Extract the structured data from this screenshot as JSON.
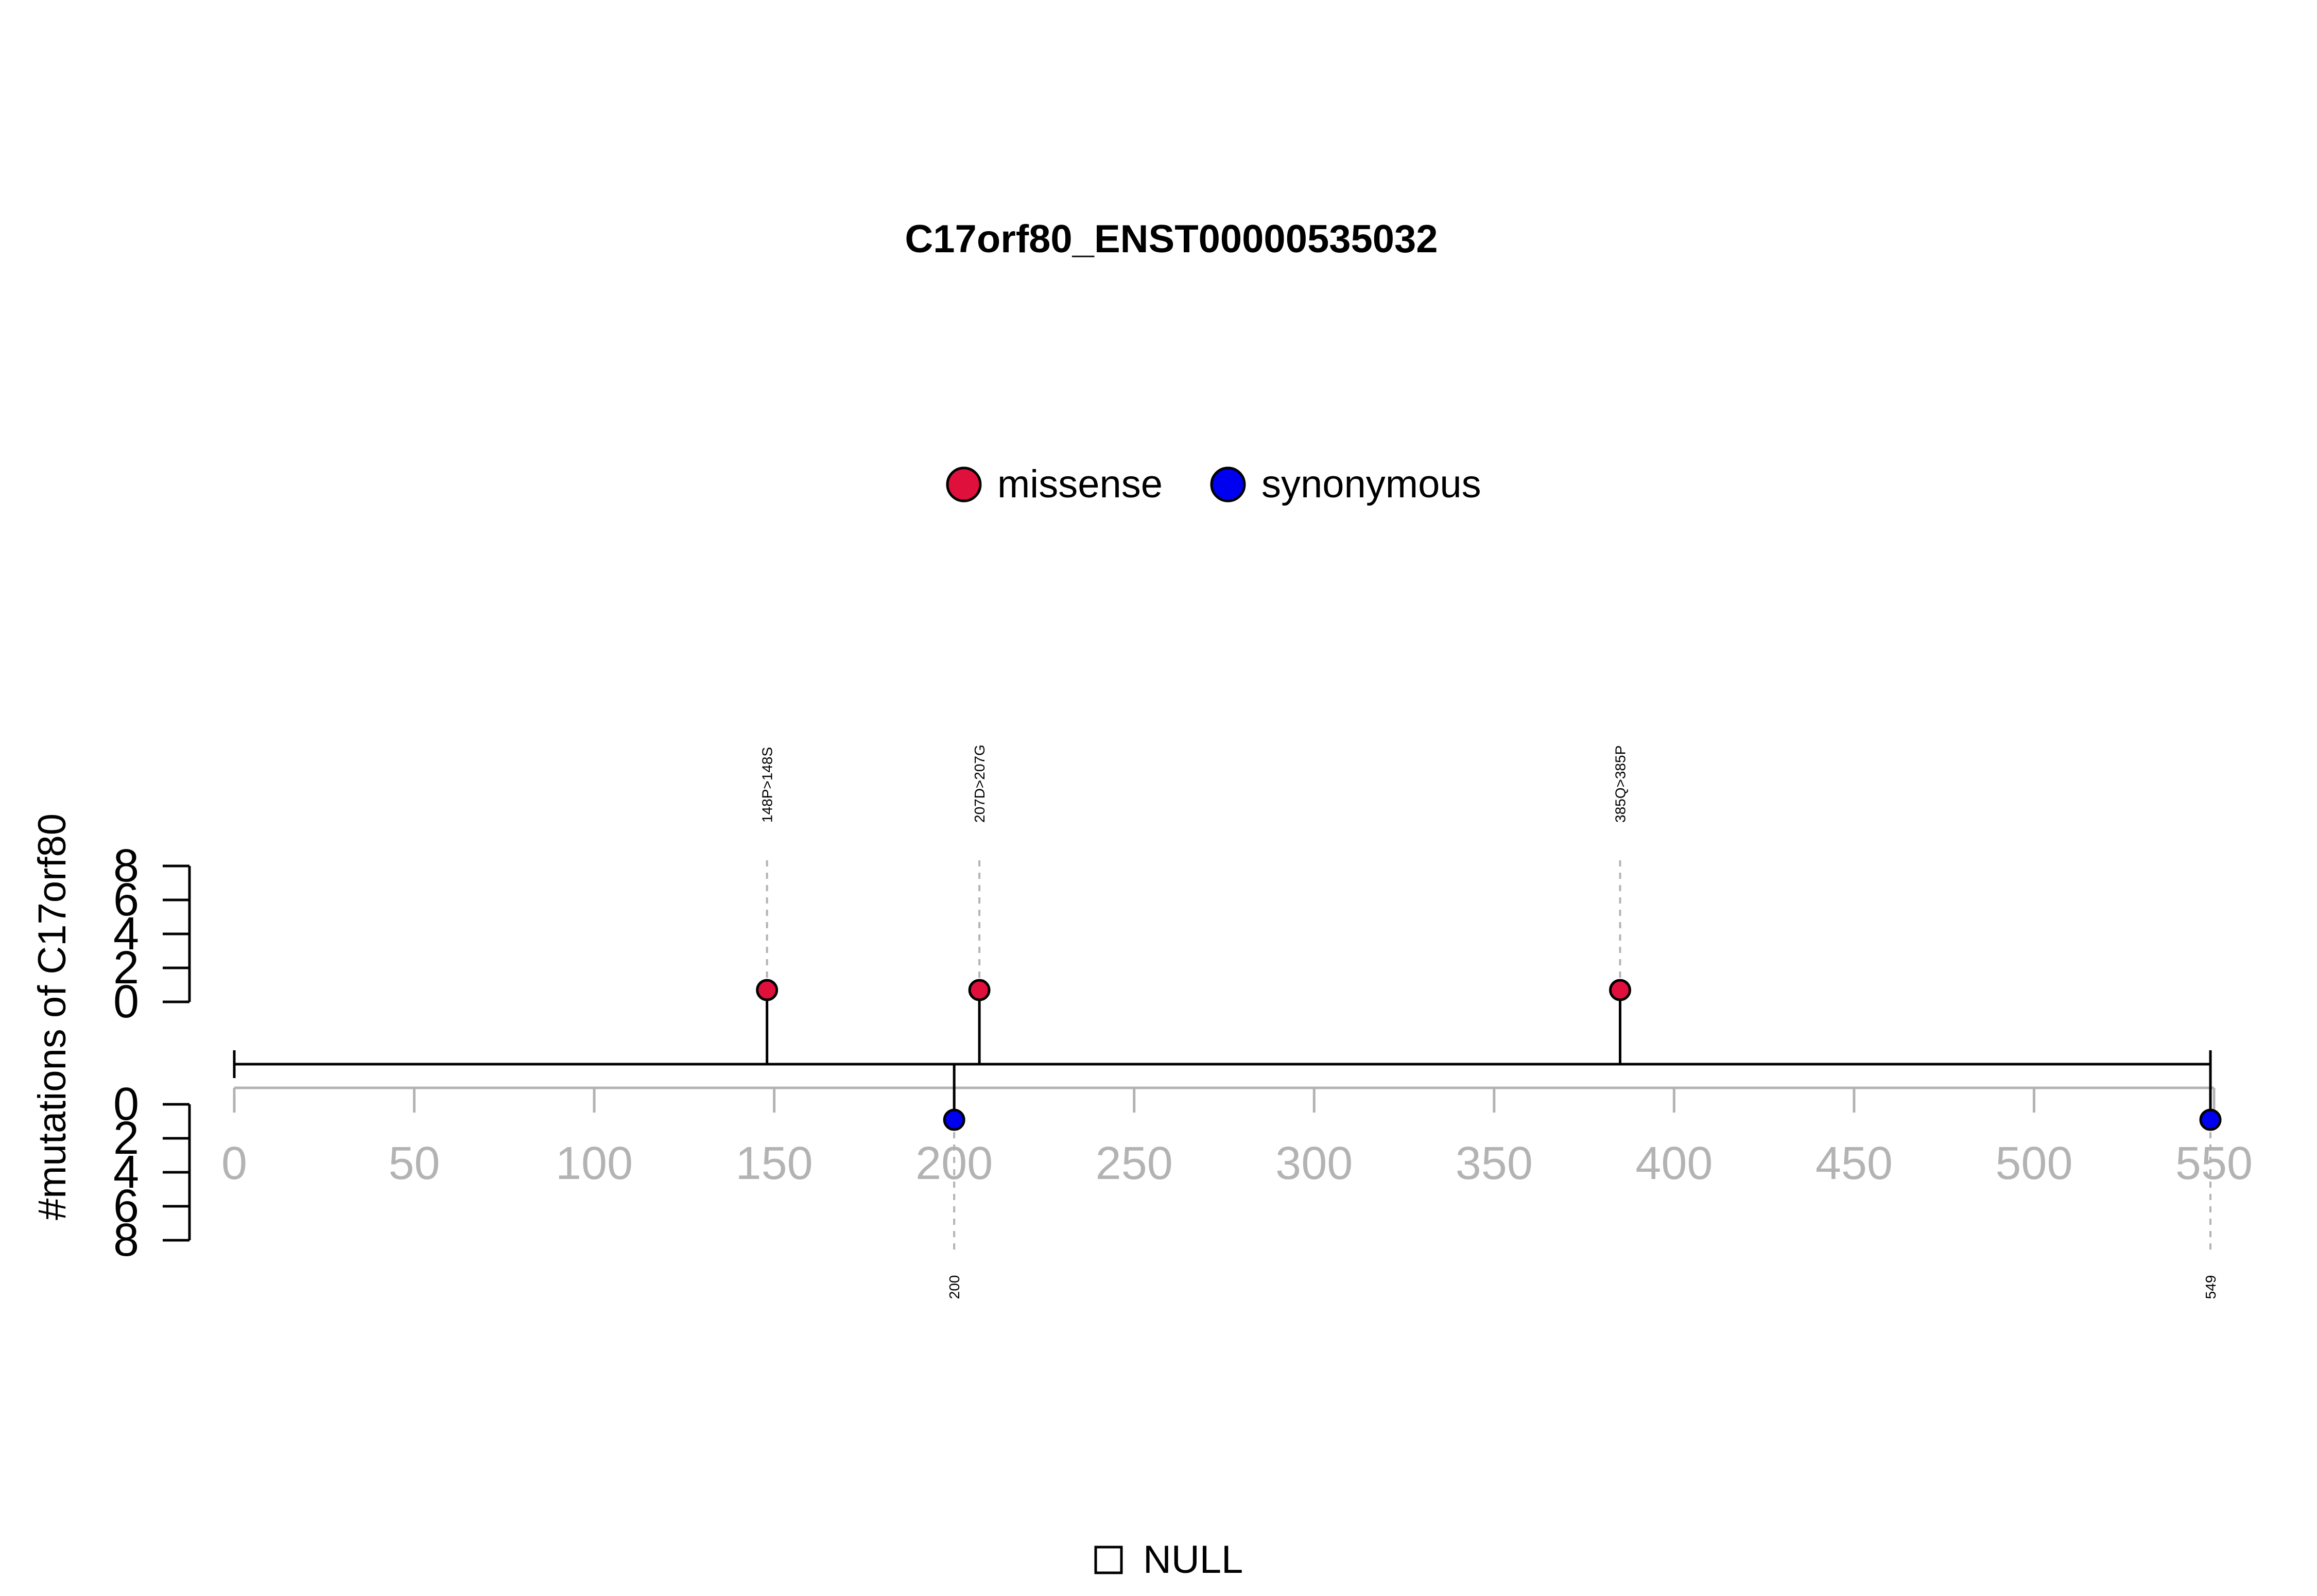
{
  "chart_data": {
    "type": "lollipop",
    "title": "C17orf80_ENST00000535032",
    "ylabel": "#mutations of C17orf80",
    "xlim": [
      0,
      549
    ],
    "x_ticks": [
      0,
      50,
      100,
      150,
      200,
      250,
      300,
      350,
      400,
      450,
      500,
      550
    ],
    "y_ticks_top": [
      0,
      2,
      4,
      6,
      8
    ],
    "y_ticks_bottom": [
      0,
      2,
      4,
      6,
      8
    ],
    "ylim": [
      0,
      8
    ],
    "protein_length": 549,
    "legend": [
      {
        "label": "missense",
        "color": "#E0103C"
      },
      {
        "label": "synonymous",
        "color": "#0000F0"
      }
    ],
    "domain_legend": [
      {
        "label": "NULL"
      }
    ],
    "series": [
      {
        "name": "missense",
        "color": "#E0103C",
        "side": "top",
        "points": [
          {
            "x": 148,
            "count": 1,
            "label": "148P>148S"
          },
          {
            "x": 207,
            "count": 1,
            "label": "207D>207G"
          },
          {
            "x": 385,
            "count": 1,
            "label": "385Q>385P"
          }
        ]
      },
      {
        "name": "synonymous",
        "color": "#0000F0",
        "side": "bottom",
        "points": [
          {
            "x": 200,
            "count": 1,
            "label": "200"
          },
          {
            "x": 549,
            "count": 1,
            "label": "549"
          }
        ]
      }
    ]
  }
}
